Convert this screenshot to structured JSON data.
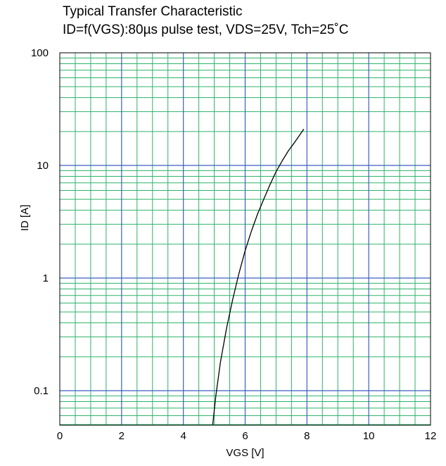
{
  "chart_data": {
    "type": "line",
    "title": "Typical Transfer Characteristic",
    "subtitle": "ID=f(VGS):80µs pulse test, VDS=25V, Tch=25˚C",
    "xlabel": "VGS [V]",
    "ylabel": "ID [A]",
    "xlim": [
      0,
      12
    ],
    "ylim": [
      0.05,
      100
    ],
    "y_scale": "log",
    "x_ticks": [
      0,
      2,
      4,
      6,
      8,
      10,
      12
    ],
    "y_ticks": [
      0.1,
      1,
      10,
      100
    ],
    "x_tick_labels": [
      "0",
      "2",
      "4",
      "6",
      "8",
      "10",
      "12"
    ],
    "y_tick_labels": [
      "0.1",
      "1",
      "10",
      "100"
    ],
    "grid": true,
    "colors": {
      "major_grid": "#3a5fbf",
      "minor_grid": "#2db36a",
      "curve": "#000000"
    },
    "series": [
      {
        "x": [
          4.95,
          5.05,
          5.2,
          5.4,
          5.6,
          5.8,
          6.0,
          6.2,
          6.4,
          6.6,
          6.8,
          7.0,
          7.2,
          7.4,
          7.6,
          7.9
        ],
        "y": [
          0.05,
          0.09,
          0.18,
          0.36,
          0.65,
          1.1,
          1.75,
          2.6,
          3.7,
          5.0,
          6.7,
          8.8,
          11.0,
          13.5,
          16.0,
          21.0
        ]
      }
    ]
  }
}
